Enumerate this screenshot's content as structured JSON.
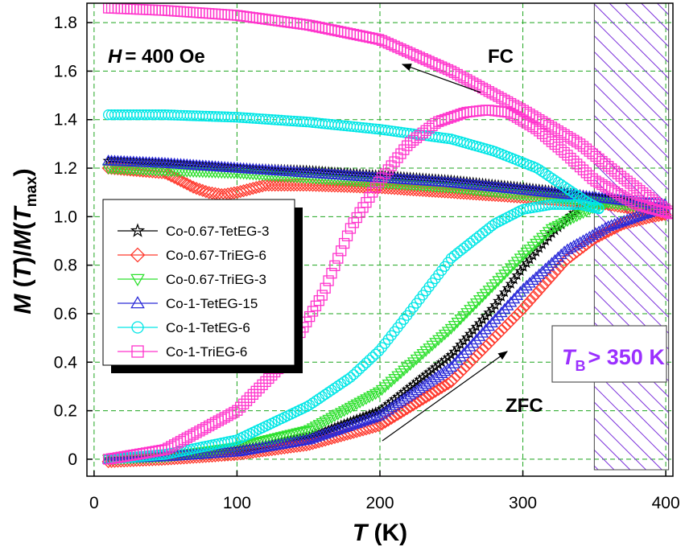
{
  "chart_data": {
    "type": "scatter",
    "xlabel_symbol": "T",
    "xlabel_unit": " (K)",
    "ylabel_parts": [
      "M",
      " (",
      "T",
      ")/",
      "M",
      "(",
      "T",
      "max",
      ")"
    ],
    "xlim": [
      -5,
      405
    ],
    "ylim": [
      -0.07,
      1.88
    ],
    "xticks": [
      0,
      100,
      200,
      300,
      400
    ],
    "xtick_labels": [
      "0",
      "100",
      "200",
      "300",
      "400"
    ],
    "yticks": [
      0,
      0.2,
      0.4,
      0.6,
      0.8,
      1.0,
      1.2,
      1.4,
      1.6,
      1.8
    ],
    "ytick_labels": [
      "0",
      "0.2",
      "0.4",
      "0.6",
      "0.8",
      "1.0",
      "1.2",
      "1.4",
      "1.6",
      "1.8"
    ],
    "grid": true,
    "legend_position": "left-middle",
    "annotations": {
      "field_symbol": "H",
      "field_value": "= 400 Oe",
      "fc_label": "FC",
      "zfc_label": "ZFC",
      "tb_symbol": "T",
      "tb_subscript": "B",
      "tb_value": "> 350 K"
    },
    "hatched_region_x": [
      350,
      402
    ],
    "hatch_color": "#7b2fdb",
    "series": [
      {
        "name": "Co-0.67-TetEG-3",
        "marker": "star",
        "color": "#000000",
        "fc": {
          "x": [
            10,
            50,
            100,
            150,
            200,
            250,
            300,
            330,
            360,
            380,
            395,
            400
          ],
          "y": [
            1.23,
            1.22,
            1.2,
            1.19,
            1.17,
            1.15,
            1.12,
            1.1,
            1.07,
            1.05,
            1.03,
            1.01
          ]
        },
        "zfc": {
          "x": [
            10,
            50,
            100,
            150,
            200,
            250,
            280,
            300,
            320,
            340
          ],
          "y": [
            0.0,
            0.01,
            0.04,
            0.09,
            0.2,
            0.43,
            0.63,
            0.79,
            0.93,
            1.04
          ]
        }
      },
      {
        "name": "Co-0.67-TriEG-6",
        "marker": "diamond",
        "color": "#ff3b2f",
        "fc": {
          "x": [
            10,
            30,
            50,
            60,
            70,
            80,
            90,
            100,
            120,
            150,
            200,
            250,
            300,
            350,
            380,
            400
          ],
          "y": [
            1.2,
            1.19,
            1.18,
            1.15,
            1.12,
            1.1,
            1.09,
            1.1,
            1.13,
            1.13,
            1.12,
            1.1,
            1.08,
            1.06,
            1.03,
            1.01
          ]
        },
        "zfc": {
          "x": [
            10,
            50,
            100,
            150,
            200,
            250,
            300,
            330,
            350,
            370,
            390,
            400
          ],
          "y": [
            -0.01,
            0.0,
            0.02,
            0.06,
            0.14,
            0.32,
            0.62,
            0.82,
            0.91,
            0.97,
            1.0,
            1.01
          ]
        }
      },
      {
        "name": "Co-0.67-TriEG-3",
        "marker": "triangle-down",
        "color": "#2ee02e",
        "fc": {
          "x": [
            10,
            50,
            100,
            150,
            200,
            250,
            300,
            340,
            370,
            400
          ],
          "y": [
            1.2,
            1.19,
            1.18,
            1.16,
            1.14,
            1.12,
            1.09,
            1.07,
            1.05,
            1.03
          ]
        },
        "zfc": {
          "x": [
            10,
            50,
            100,
            150,
            200,
            250,
            280,
            300,
            320,
            350,
            360
          ],
          "y": [
            0.0,
            0.01,
            0.05,
            0.12,
            0.28,
            0.54,
            0.72,
            0.84,
            0.95,
            1.04,
            1.06
          ]
        }
      },
      {
        "name": "Co-1-TetEG-15",
        "marker": "triangle-up",
        "color": "#2a2ad8",
        "fc": {
          "x": [
            10,
            50,
            100,
            150,
            200,
            250,
            300,
            350,
            380,
            400
          ],
          "y": [
            1.23,
            1.22,
            1.2,
            1.18,
            1.16,
            1.14,
            1.11,
            1.08,
            1.06,
            1.05
          ]
        },
        "zfc": {
          "x": [
            10,
            50,
            100,
            150,
            200,
            250,
            300,
            330,
            360,
            390,
            400
          ],
          "y": [
            0.0,
            0.01,
            0.03,
            0.08,
            0.18,
            0.38,
            0.7,
            0.86,
            0.96,
            1.02,
            1.03
          ]
        }
      },
      {
        "name": "Co-1-TetEG-6",
        "marker": "circle",
        "color": "#00e6e6",
        "fc": {
          "x": [
            10,
            50,
            100,
            150,
            200,
            250,
            280,
            310,
            330,
            345,
            355
          ],
          "y": [
            1.42,
            1.42,
            1.41,
            1.39,
            1.36,
            1.32,
            1.27,
            1.2,
            1.12,
            1.06,
            1.03
          ]
        },
        "zfc": {
          "x": [
            10,
            50,
            100,
            150,
            180,
            200,
            220,
            250,
            280,
            300,
            320,
            340,
            355
          ],
          "y": [
            0.0,
            0.02,
            0.08,
            0.22,
            0.34,
            0.45,
            0.6,
            0.83,
            0.97,
            1.03,
            1.05,
            1.05,
            1.03
          ]
        }
      },
      {
        "name": "Co-1-TriEG-6",
        "marker": "square",
        "color": "#ff33cc",
        "fc": {
          "x": [
            10,
            50,
            100,
            150,
            200,
            250,
            300,
            340,
            370,
            395,
            405
          ],
          "y": [
            1.86,
            1.85,
            1.83,
            1.79,
            1.73,
            1.6,
            1.44,
            1.3,
            1.16,
            1.05,
            1.01
          ]
        },
        "zfc": {
          "x": [
            10,
            50,
            100,
            130,
            160,
            180,
            200,
            220,
            240,
            260,
            275,
            290,
            310,
            330,
            350,
            380,
            405
          ],
          "y": [
            0.0,
            0.04,
            0.2,
            0.38,
            0.68,
            0.96,
            1.15,
            1.3,
            1.39,
            1.43,
            1.44,
            1.43,
            1.36,
            1.26,
            1.15,
            1.05,
            1.01
          ]
        }
      }
    ]
  }
}
